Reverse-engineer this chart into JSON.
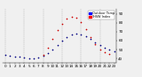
{
  "hours": [
    0,
    1,
    2,
    3,
    4,
    5,
    6,
    7,
    8,
    9,
    10,
    11,
    12,
    13,
    14,
    15,
    16,
    17,
    18,
    19,
    20,
    21,
    22,
    23
  ],
  "temp": [
    44,
    43,
    42,
    42,
    41,
    40,
    40,
    41,
    43,
    46,
    50,
    55,
    60,
    64,
    67,
    68,
    67,
    65,
    62,
    58,
    55,
    52,
    50,
    48
  ],
  "thsw": [
    null,
    null,
    null,
    null,
    null,
    null,
    null,
    null,
    44,
    52,
    62,
    72,
    79,
    85,
    87,
    86,
    81,
    73,
    64,
    56,
    50,
    47,
    45,
    null
  ],
  "temp_color": "#000080",
  "thsw_color": "#cc0000",
  "bg_color": "#f0f0f0",
  "grid_color": "#aaaaaa",
  "tick_label_color": "#000000",
  "ylim_min": 35,
  "ylim_max": 95,
  "yticks": [
    40,
    50,
    60,
    70,
    80,
    90
  ],
  "ytick_labels": [
    "40",
    "50",
    "60",
    "70",
    "80",
    "90"
  ],
  "legend_temp_label": "Outdoor Temp",
  "legend_thsw_label": "THSW Index",
  "legend_bar_blue": "#0000ff",
  "legend_bar_red": "#ff0000",
  "marker_size": 1.5,
  "tick_fontsize": 3.0,
  "legend_fontsize": 2.5,
  "grid_vlines": [
    0,
    4,
    8,
    12,
    16,
    20,
    24
  ]
}
